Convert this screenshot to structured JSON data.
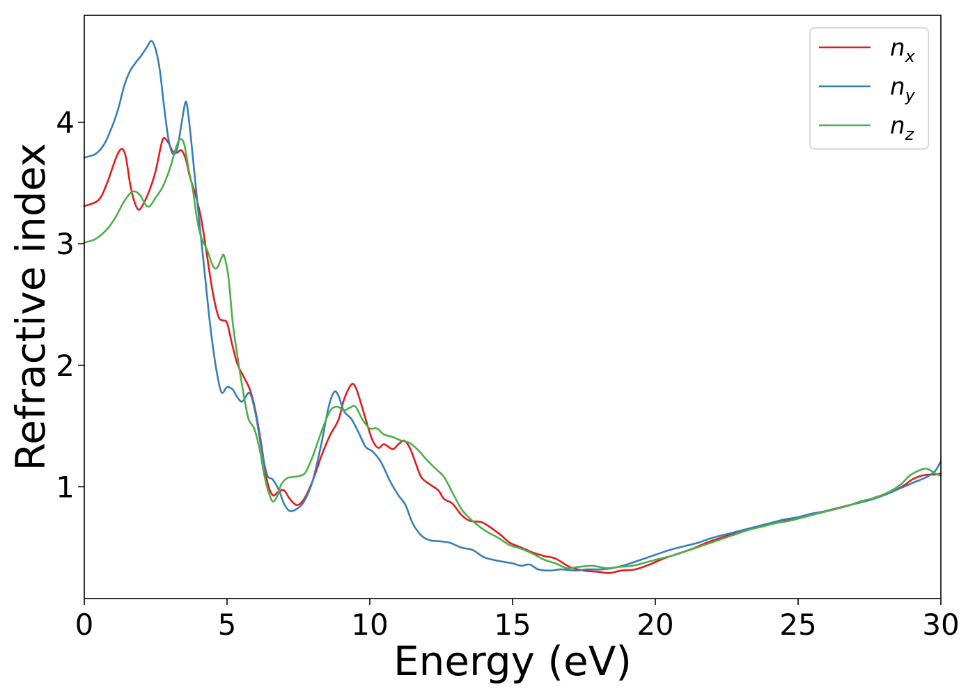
{
  "chart_data": {
    "type": "line",
    "title": "",
    "xlabel": "Energy (eV)",
    "ylabel": "Refractive index",
    "xlim": [
      0,
      30
    ],
    "ylim": [
      0.08,
      4.88
    ],
    "xticks": [
      0,
      5,
      10,
      15,
      20,
      25,
      30
    ],
    "yticks": [
      1,
      2,
      3,
      4
    ],
    "xtick_labels": [
      "0",
      "5",
      "10",
      "15",
      "20",
      "25",
      "30"
    ],
    "ytick_labels": [
      "1",
      "2",
      "3",
      "4"
    ],
    "grid": false,
    "legend_position": "top-right",
    "series": [
      {
        "name": "n_x",
        "label_base": "n",
        "label_sub": "x",
        "color": "#e41a1c",
        "points": [
          [
            0,
            3.31
          ],
          [
            0.5,
            3.36
          ],
          [
            0.8,
            3.5
          ],
          [
            1.1,
            3.7
          ],
          [
            1.3,
            3.78
          ],
          [
            1.45,
            3.72
          ],
          [
            1.6,
            3.5
          ],
          [
            1.75,
            3.35
          ],
          [
            1.9,
            3.28
          ],
          [
            2.05,
            3.32
          ],
          [
            2.3,
            3.45
          ],
          [
            2.5,
            3.6
          ],
          [
            2.7,
            3.82
          ],
          [
            2.8,
            3.87
          ],
          [
            2.95,
            3.83
          ],
          [
            3.1,
            3.76
          ],
          [
            3.25,
            3.75
          ],
          [
            3.4,
            3.77
          ],
          [
            3.55,
            3.7
          ],
          [
            3.7,
            3.55
          ],
          [
            3.9,
            3.4
          ],
          [
            4.1,
            3.2
          ],
          [
            4.3,
            2.9
          ],
          [
            4.5,
            2.6
          ],
          [
            4.7,
            2.4
          ],
          [
            4.85,
            2.37
          ],
          [
            5.0,
            2.35
          ],
          [
            5.15,
            2.2
          ],
          [
            5.35,
            2.02
          ],
          [
            5.55,
            1.92
          ],
          [
            5.8,
            1.8
          ],
          [
            6.0,
            1.62
          ],
          [
            6.2,
            1.35
          ],
          [
            6.4,
            1.05
          ],
          [
            6.6,
            0.93
          ],
          [
            6.8,
            0.96
          ],
          [
            7.0,
            0.97
          ],
          [
            7.2,
            0.9
          ],
          [
            7.45,
            0.85
          ],
          [
            7.7,
            0.9
          ],
          [
            8.0,
            1.05
          ],
          [
            8.3,
            1.25
          ],
          [
            8.6,
            1.42
          ],
          [
            8.9,
            1.55
          ],
          [
            9.1,
            1.72
          ],
          [
            9.35,
            1.84
          ],
          [
            9.5,
            1.82
          ],
          [
            9.7,
            1.68
          ],
          [
            9.9,
            1.52
          ],
          [
            10.1,
            1.38
          ],
          [
            10.3,
            1.32
          ],
          [
            10.5,
            1.35
          ],
          [
            10.8,
            1.31
          ],
          [
            11.0,
            1.35
          ],
          [
            11.2,
            1.38
          ],
          [
            11.4,
            1.32
          ],
          [
            11.6,
            1.2
          ],
          [
            11.8,
            1.08
          ],
          [
            12.1,
            1.02
          ],
          [
            12.4,
            0.97
          ],
          [
            12.6,
            0.9
          ],
          [
            12.9,
            0.86
          ],
          [
            13.2,
            0.77
          ],
          [
            13.5,
            0.72
          ],
          [
            13.9,
            0.71
          ],
          [
            14.2,
            0.67
          ],
          [
            14.6,
            0.6
          ],
          [
            14.9,
            0.54
          ],
          [
            15.3,
            0.5
          ],
          [
            15.7,
            0.46
          ],
          [
            16.1,
            0.43
          ],
          [
            16.5,
            0.41
          ],
          [
            17.0,
            0.34
          ],
          [
            17.5,
            0.31
          ],
          [
            18.0,
            0.3
          ],
          [
            18.4,
            0.29
          ],
          [
            18.8,
            0.31
          ],
          [
            19.3,
            0.32
          ],
          [
            19.8,
            0.36
          ],
          [
            20.3,
            0.41
          ],
          [
            20.8,
            0.45
          ],
          [
            21.3,
            0.49
          ],
          [
            21.8,
            0.54
          ],
          [
            22.3,
            0.58
          ],
          [
            22.8,
            0.62
          ],
          [
            23.3,
            0.65
          ],
          [
            23.8,
            0.68
          ],
          [
            24.3,
            0.71
          ],
          [
            24.8,
            0.73
          ],
          [
            25.3,
            0.76
          ],
          [
            25.8,
            0.79
          ],
          [
            26.3,
            0.82
          ],
          [
            26.8,
            0.85
          ],
          [
            27.3,
            0.88
          ],
          [
            27.8,
            0.92
          ],
          [
            28.3,
            0.96
          ],
          [
            28.7,
            1.01
          ],
          [
            29.0,
            1.06
          ],
          [
            29.3,
            1.09
          ],
          [
            29.6,
            1.1
          ],
          [
            29.8,
            1.1
          ],
          [
            30.0,
            1.11
          ]
        ]
      },
      {
        "name": "n_y",
        "label_base": "n",
        "label_sub": "y",
        "color": "#377eb8",
        "points": [
          [
            0,
            3.71
          ],
          [
            0.4,
            3.74
          ],
          [
            0.7,
            3.82
          ],
          [
            1.0,
            3.98
          ],
          [
            1.2,
            4.12
          ],
          [
            1.4,
            4.3
          ],
          [
            1.6,
            4.42
          ],
          [
            1.8,
            4.49
          ],
          [
            2.0,
            4.55
          ],
          [
            2.2,
            4.62
          ],
          [
            2.35,
            4.67
          ],
          [
            2.5,
            4.6
          ],
          [
            2.65,
            4.42
          ],
          [
            2.8,
            4.12
          ],
          [
            2.95,
            3.86
          ],
          [
            3.1,
            3.74
          ],
          [
            3.25,
            3.78
          ],
          [
            3.4,
            3.98
          ],
          [
            3.5,
            4.12
          ],
          [
            3.58,
            4.16
          ],
          [
            3.7,
            3.95
          ],
          [
            3.85,
            3.6
          ],
          [
            4.0,
            3.25
          ],
          [
            4.2,
            2.8
          ],
          [
            4.4,
            2.35
          ],
          [
            4.6,
            2.0
          ],
          [
            4.8,
            1.78
          ],
          [
            5.0,
            1.82
          ],
          [
            5.2,
            1.8
          ],
          [
            5.35,
            1.74
          ],
          [
            5.5,
            1.7
          ],
          [
            5.6,
            1.72
          ],
          [
            5.8,
            1.77
          ],
          [
            6.0,
            1.6
          ],
          [
            6.2,
            1.32
          ],
          [
            6.4,
            1.1
          ],
          [
            6.6,
            1.06
          ],
          [
            6.8,
            0.98
          ],
          [
            7.0,
            0.86
          ],
          [
            7.2,
            0.8
          ],
          [
            7.45,
            0.82
          ],
          [
            7.7,
            0.88
          ],
          [
            8.0,
            1.05
          ],
          [
            8.3,
            1.35
          ],
          [
            8.55,
            1.65
          ],
          [
            8.75,
            1.78
          ],
          [
            8.9,
            1.75
          ],
          [
            9.1,
            1.62
          ],
          [
            9.35,
            1.56
          ],
          [
            9.6,
            1.45
          ],
          [
            9.85,
            1.33
          ],
          [
            10.1,
            1.29
          ],
          [
            10.4,
            1.2
          ],
          [
            10.7,
            1.05
          ],
          [
            11.0,
            0.93
          ],
          [
            11.25,
            0.85
          ],
          [
            11.5,
            0.7
          ],
          [
            11.8,
            0.6
          ],
          [
            12.1,
            0.56
          ],
          [
            12.5,
            0.55
          ],
          [
            12.8,
            0.54
          ],
          [
            13.2,
            0.5
          ],
          [
            13.6,
            0.48
          ],
          [
            14.0,
            0.42
          ],
          [
            14.5,
            0.39
          ],
          [
            15.0,
            0.37
          ],
          [
            15.3,
            0.35
          ],
          [
            15.6,
            0.36
          ],
          [
            15.9,
            0.32
          ],
          [
            16.3,
            0.31
          ],
          [
            16.7,
            0.32
          ],
          [
            17.2,
            0.31
          ],
          [
            17.6,
            0.32
          ],
          [
            18.1,
            0.32
          ],
          [
            18.5,
            0.33
          ],
          [
            19.0,
            0.36
          ],
          [
            19.5,
            0.4
          ],
          [
            20.0,
            0.44
          ],
          [
            20.5,
            0.48
          ],
          [
            21.0,
            0.51
          ],
          [
            21.5,
            0.54
          ],
          [
            22.0,
            0.58
          ],
          [
            22.5,
            0.61
          ],
          [
            23.0,
            0.64
          ],
          [
            23.5,
            0.67
          ],
          [
            24.0,
            0.7
          ],
          [
            24.5,
            0.73
          ],
          [
            25.0,
            0.75
          ],
          [
            25.5,
            0.78
          ],
          [
            26.0,
            0.8
          ],
          [
            26.5,
            0.83
          ],
          [
            27.0,
            0.86
          ],
          [
            27.5,
            0.89
          ],
          [
            28.0,
            0.93
          ],
          [
            28.5,
            0.98
          ],
          [
            29.0,
            1.03
          ],
          [
            29.5,
            1.08
          ],
          [
            29.8,
            1.13
          ],
          [
            30.0,
            1.21
          ]
        ]
      },
      {
        "name": "n_z",
        "label_base": "n",
        "label_sub": "z",
        "color": "#4daf4a",
        "points": [
          [
            0,
            3.01
          ],
          [
            0.4,
            3.04
          ],
          [
            0.8,
            3.12
          ],
          [
            1.1,
            3.22
          ],
          [
            1.4,
            3.35
          ],
          [
            1.7,
            3.43
          ],
          [
            1.95,
            3.4
          ],
          [
            2.15,
            3.32
          ],
          [
            2.3,
            3.31
          ],
          [
            2.5,
            3.38
          ],
          [
            2.75,
            3.47
          ],
          [
            3.0,
            3.62
          ],
          [
            3.2,
            3.78
          ],
          [
            3.35,
            3.86
          ],
          [
            3.5,
            3.82
          ],
          [
            3.65,
            3.62
          ],
          [
            3.8,
            3.45
          ],
          [
            3.95,
            3.2
          ],
          [
            4.1,
            3.05
          ],
          [
            4.3,
            2.95
          ],
          [
            4.5,
            2.82
          ],
          [
            4.65,
            2.8
          ],
          [
            4.8,
            2.88
          ],
          [
            4.9,
            2.9
          ],
          [
            5.05,
            2.72
          ],
          [
            5.2,
            2.35
          ],
          [
            5.35,
            2.1
          ],
          [
            5.55,
            1.8
          ],
          [
            5.75,
            1.56
          ],
          [
            5.95,
            1.48
          ],
          [
            6.15,
            1.3
          ],
          [
            6.3,
            1.1
          ],
          [
            6.45,
            0.96
          ],
          [
            6.6,
            0.88
          ],
          [
            6.75,
            0.92
          ],
          [
            6.9,
            1.02
          ],
          [
            7.1,
            1.07
          ],
          [
            7.3,
            1.08
          ],
          [
            7.55,
            1.09
          ],
          [
            7.75,
            1.12
          ],
          [
            8.0,
            1.25
          ],
          [
            8.3,
            1.45
          ],
          [
            8.6,
            1.62
          ],
          [
            8.85,
            1.66
          ],
          [
            9.1,
            1.63
          ],
          [
            9.3,
            1.65
          ],
          [
            9.5,
            1.66
          ],
          [
            9.75,
            1.55
          ],
          [
            10.0,
            1.48
          ],
          [
            10.25,
            1.48
          ],
          [
            10.5,
            1.43
          ],
          [
            10.8,
            1.41
          ],
          [
            11.1,
            1.38
          ],
          [
            11.4,
            1.36
          ],
          [
            11.7,
            1.3
          ],
          [
            12.0,
            1.22
          ],
          [
            12.3,
            1.15
          ],
          [
            12.6,
            1.08
          ],
          [
            12.9,
            0.95
          ],
          [
            13.2,
            0.82
          ],
          [
            13.5,
            0.74
          ],
          [
            13.8,
            0.68
          ],
          [
            14.1,
            0.63
          ],
          [
            14.5,
            0.58
          ],
          [
            14.9,
            0.52
          ],
          [
            15.3,
            0.49
          ],
          [
            15.7,
            0.45
          ],
          [
            16.1,
            0.4
          ],
          [
            16.5,
            0.37
          ],
          [
            16.9,
            0.33
          ],
          [
            17.3,
            0.34
          ],
          [
            17.8,
            0.35
          ],
          [
            18.3,
            0.33
          ],
          [
            18.7,
            0.34
          ],
          [
            19.2,
            0.35
          ],
          [
            19.7,
            0.38
          ],
          [
            20.2,
            0.41
          ],
          [
            20.7,
            0.44
          ],
          [
            21.2,
            0.48
          ],
          [
            21.7,
            0.52
          ],
          [
            22.2,
            0.56
          ],
          [
            22.7,
            0.6
          ],
          [
            23.2,
            0.64
          ],
          [
            23.7,
            0.67
          ],
          [
            24.2,
            0.7
          ],
          [
            24.7,
            0.72
          ],
          [
            25.2,
            0.75
          ],
          [
            25.7,
            0.78
          ],
          [
            26.2,
            0.81
          ],
          [
            26.7,
            0.84
          ],
          [
            27.2,
            0.88
          ],
          [
            27.7,
            0.91
          ],
          [
            28.2,
            0.96
          ],
          [
            28.6,
            1.02
          ],
          [
            28.9,
            1.09
          ],
          [
            29.2,
            1.13
          ],
          [
            29.45,
            1.15
          ],
          [
            29.6,
            1.14
          ],
          [
            29.8,
            1.11
          ],
          [
            30.0,
            1.09
          ]
        ]
      }
    ]
  }
}
